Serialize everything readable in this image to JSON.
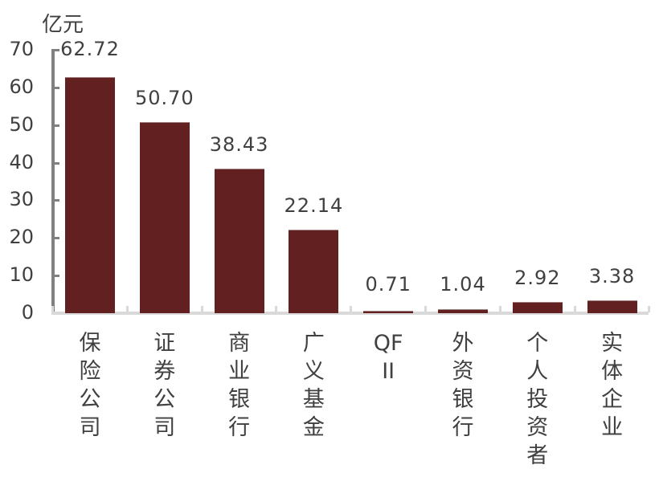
{
  "chart_data": {
    "type": "bar",
    "title": "",
    "unit_label": "亿元",
    "xlabel": "",
    "ylabel": "亿元",
    "ylim": [
      0,
      70
    ],
    "yticks": [
      0,
      10,
      20,
      30,
      40,
      50,
      60,
      70
    ],
    "grid": false,
    "legend": null,
    "bar_color": "#632021",
    "categories": [
      "保险公司",
      "证券公司",
      "商业银行",
      "广义基金",
      "QFII",
      "外资银行",
      "个人投资者",
      "实体企业"
    ],
    "values": [
      62.72,
      50.7,
      38.43,
      22.14,
      0.71,
      1.04,
      2.92,
      3.38
    ],
    "value_labels": [
      "62.72",
      "50.70",
      "38.43",
      "22.14",
      "0.71",
      "1.04",
      "2.92",
      "3.38"
    ]
  }
}
